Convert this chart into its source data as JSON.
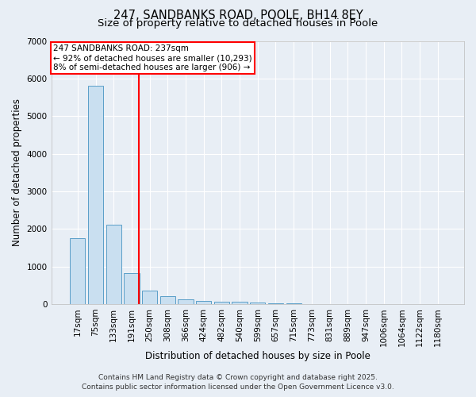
{
  "title_line1": "247, SANDBANKS ROAD, POOLE, BH14 8EY",
  "title_line2": "Size of property relative to detached houses in Poole",
  "xlabel": "Distribution of detached houses by size in Poole",
  "ylabel": "Number of detached properties",
  "categories": [
    "17sqm",
    "75sqm",
    "133sqm",
    "191sqm",
    "250sqm",
    "308sqm",
    "366sqm",
    "424sqm",
    "482sqm",
    "540sqm",
    "599sqm",
    "657sqm",
    "715sqm",
    "773sqm",
    "831sqm",
    "889sqm",
    "947sqm",
    "1006sqm",
    "1064sqm",
    "1122sqm",
    "1180sqm"
  ],
  "values": [
    1750,
    5800,
    2100,
    820,
    360,
    200,
    120,
    80,
    65,
    50,
    30,
    15,
    8,
    5,
    3,
    2,
    1,
    1,
    1,
    0,
    0
  ],
  "bar_color": "#c9dff0",
  "bar_edge_color": "#5a9ec8",
  "vline_x_index": 3.42,
  "vline_color": "red",
  "ylim": [
    0,
    7000
  ],
  "yticks": [
    0,
    1000,
    2000,
    3000,
    4000,
    5000,
    6000,
    7000
  ],
  "annotation_text": "247 SANDBANKS ROAD: 237sqm\n← 92% of detached houses are smaller (10,293)\n8% of semi-detached houses are larger (906) →",
  "annotation_box_color": "white",
  "annotation_box_edge": "red",
  "footer_line1": "Contains HM Land Registry data © Crown copyright and database right 2025.",
  "footer_line2": "Contains public sector information licensed under the Open Government Licence v3.0.",
  "background_color": "#e8eef5",
  "grid_color": "white",
  "title_fontsize": 10.5,
  "subtitle_fontsize": 9.5,
  "axis_label_fontsize": 8.5,
  "tick_fontsize": 7.5,
  "annotation_fontsize": 7.5,
  "footer_fontsize": 6.5
}
